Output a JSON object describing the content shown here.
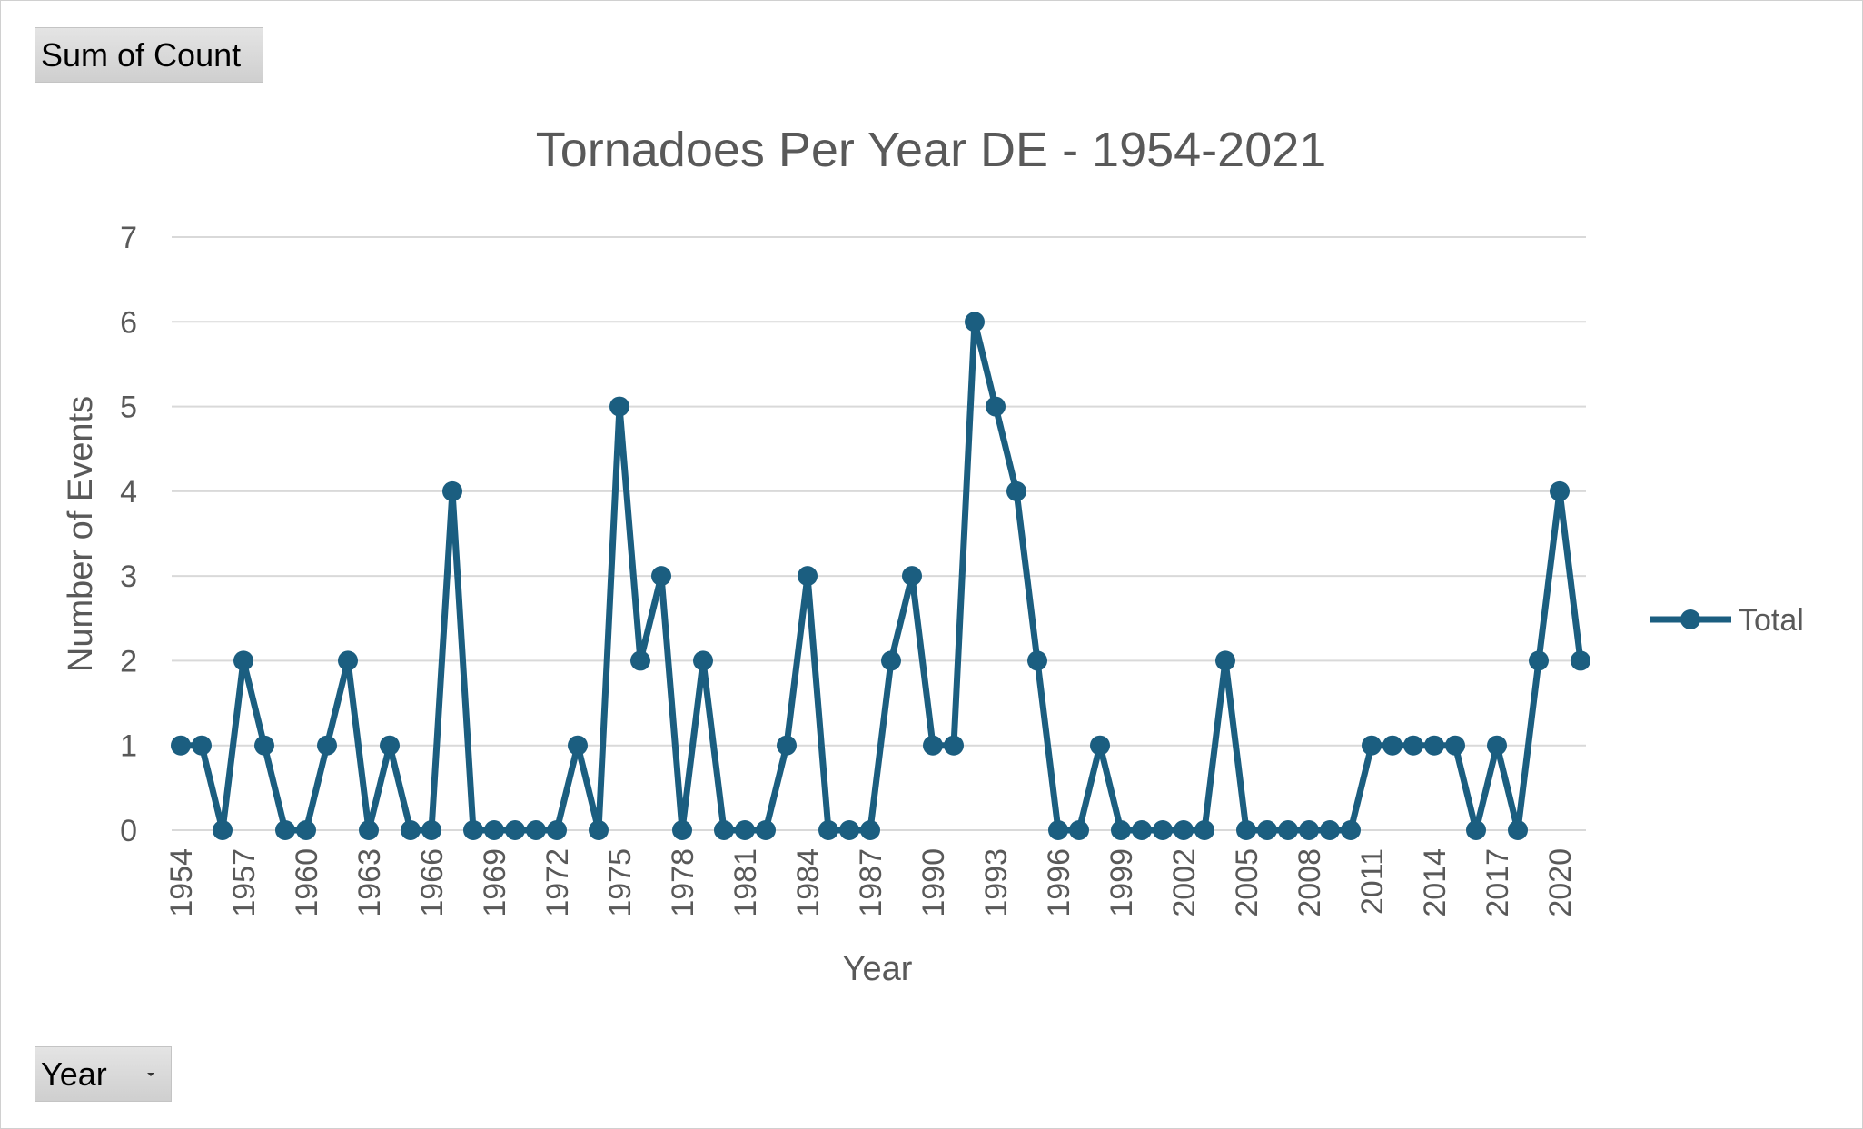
{
  "field_buttons": {
    "values_label": "Sum of Count",
    "axis_label": "Year"
  },
  "colors": {
    "series": "#1b5e80",
    "grid": "#d9d9d9",
    "text": "#595959"
  },
  "chart_data": {
    "type": "line",
    "title": "Tornadoes Per Year DE - 1954-2021",
    "xlabel": "Year",
    "ylabel": "Number of Events",
    "ylim": [
      0,
      7
    ],
    "yticks": [
      "0",
      "1",
      "2",
      "3",
      "4",
      "5",
      "6",
      "7"
    ],
    "legend": {
      "position": "right",
      "entries": [
        "Total"
      ]
    },
    "categories": [
      "1954",
      "1955",
      "1956",
      "1957",
      "1958",
      "1959",
      "1960",
      "1961",
      "1962",
      "1963",
      "1964",
      "1965",
      "1966",
      "1967",
      "1968",
      "1969",
      "1970",
      "1971",
      "1972",
      "1973",
      "1974",
      "1975",
      "1976",
      "1977",
      "1978",
      "1979",
      "1980",
      "1981",
      "1982",
      "1983",
      "1984",
      "1985",
      "1986",
      "1987",
      "1988",
      "1989",
      "1990",
      "1991",
      "1992",
      "1993",
      "1994",
      "1995",
      "1996",
      "1997",
      "1998",
      "1999",
      "2000",
      "2001",
      "2002",
      "2003",
      "2004",
      "2005",
      "2006",
      "2007",
      "2008",
      "2009",
      "2010",
      "2011",
      "2012",
      "2013",
      "2014",
      "2015",
      "2016",
      "2017",
      "2018",
      "2019",
      "2020",
      "2021"
    ],
    "tick_labels": [
      "1954",
      "",
      "",
      "1957",
      "",
      "",
      "1960",
      "",
      "",
      "1963",
      "",
      "",
      "1966",
      "",
      "",
      "1969",
      "",
      "",
      "1972",
      "",
      "",
      "1975",
      "",
      "",
      "1978",
      "",
      "",
      "1981",
      "",
      "",
      "1984",
      "",
      "",
      "1987",
      "",
      "",
      "1990",
      "",
      "",
      "1993",
      "",
      "",
      "1996",
      "",
      "",
      "1999",
      "",
      "",
      "2002",
      "",
      "",
      "2005",
      "",
      "",
      "2008",
      "",
      "",
      "2011",
      "",
      "",
      "2014",
      "",
      "",
      "2017",
      "",
      "",
      "2020",
      ""
    ],
    "series": [
      {
        "name": "Total",
        "values": [
          1,
          1,
          0,
          2,
          1,
          0,
          0,
          1,
          2,
          0,
          1,
          0,
          0,
          4,
          0,
          0,
          0,
          0,
          0,
          1,
          0,
          5,
          2,
          3,
          0,
          2,
          0,
          0,
          0,
          1,
          3,
          0,
          0,
          0,
          2,
          3,
          1,
          1,
          6,
          5,
          4,
          2,
          0,
          0,
          1,
          0,
          0,
          0,
          0,
          0,
          2,
          0,
          0,
          0,
          0,
          0,
          0,
          1,
          1,
          1,
          1,
          1,
          0,
          1,
          0,
          2,
          4,
          2
        ]
      }
    ]
  }
}
